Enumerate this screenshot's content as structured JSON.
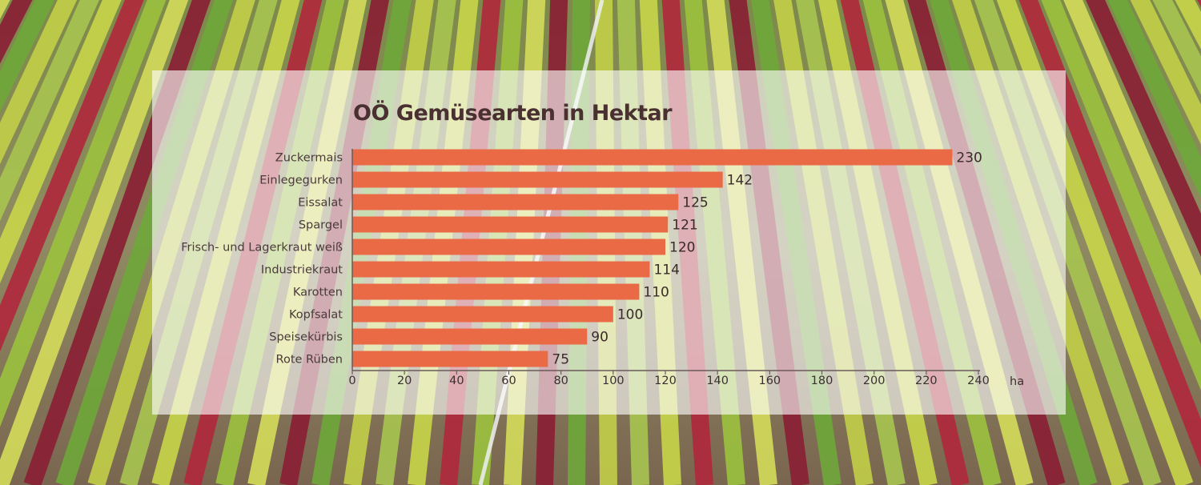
{
  "chart_data": {
    "type": "bar",
    "orientation": "horizontal",
    "title": "OÖ Gemüsearten in Hektar",
    "categories": [
      "Zuckermais",
      "Einlegegurken",
      "Eissalat",
      "Spargel",
      "Frisch- und Lagerkraut weiß",
      "Industriekraut",
      "Karotten",
      "Kopfsalat",
      "Speisekürbis",
      "Rote Rüben"
    ],
    "values": [
      230,
      142,
      125,
      121,
      120,
      114,
      110,
      100,
      90,
      75
    ],
    "xlabel": "ha",
    "ylabel": "",
    "xlim": [
      0,
      240
    ],
    "xticks": [
      0,
      20,
      40,
      60,
      80,
      100,
      120,
      140,
      160,
      180,
      200,
      220,
      240
    ],
    "grid": false,
    "legend": "none",
    "bar_color": "#ea6a45",
    "axis_color": "#6a5a5a"
  }
}
